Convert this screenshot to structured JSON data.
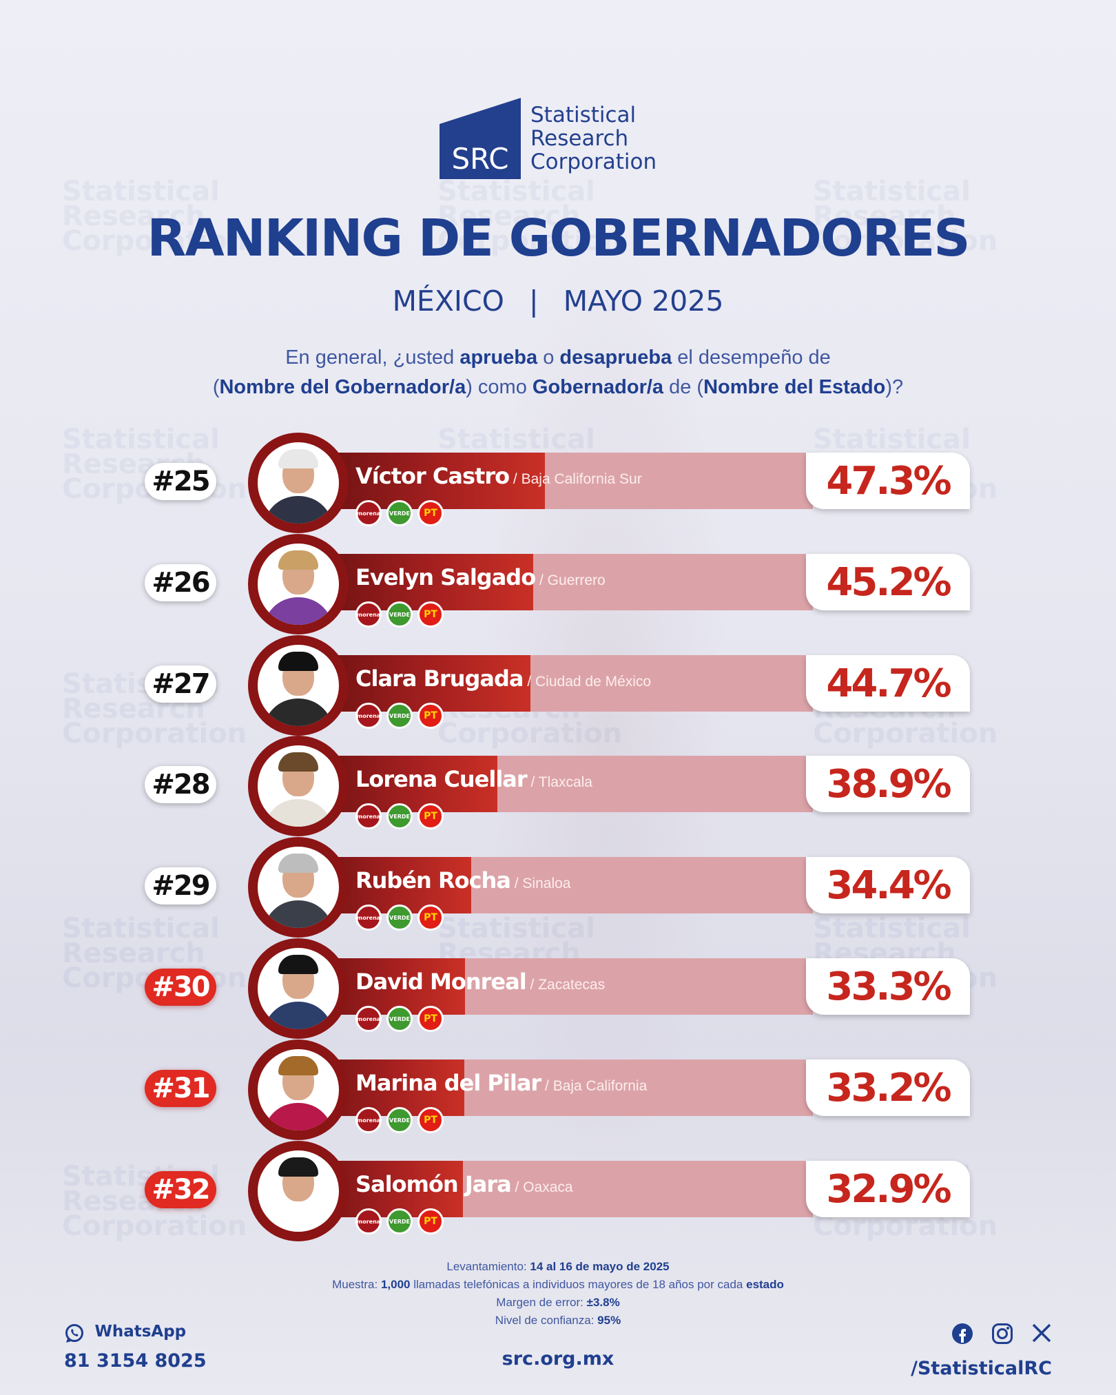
{
  "brand": {
    "logo_abbr": "SRC",
    "logo_lines": [
      "Statistical",
      "Research",
      "Corporation"
    ],
    "colors": {
      "primary_blue": "#1f3f8f",
      "bar_red": "#a31f1f",
      "bar_track": "#dba3a8",
      "badge_red": "#e02a22"
    }
  },
  "header": {
    "title": "RANKING DE GOBERNADORES",
    "country": "MÉXICO",
    "separator": "|",
    "date": "MAYO 2025"
  },
  "question": {
    "line1": [
      {
        "t": "En general, ¿usted ",
        "b": false
      },
      {
        "t": "aprueba",
        "b": true
      },
      {
        "t": " o ",
        "b": false
      },
      {
        "t": "desaprueba",
        "b": true
      },
      {
        "t": " el desempeño de",
        "b": false
      }
    ],
    "line2": [
      {
        "t": "(",
        "b": false
      },
      {
        "t": "Nombre del Gobernador/a",
        "b": true
      },
      {
        "t": ") como ",
        "b": false
      },
      {
        "t": "Gobernador/a",
        "b": true
      },
      {
        "t": " de (",
        "b": false
      },
      {
        "t": "Nombre del Estado",
        "b": true
      },
      {
        "t": ")?",
        "b": false
      }
    ]
  },
  "chart_data": {
    "type": "bar",
    "orientation": "horizontal",
    "title": "RANKING DE GOBERNADORES",
    "value_unit": "%",
    "xlim": [
      0,
      100
    ],
    "rows": [
      {
        "rank": "#25",
        "name": "Víctor Castro",
        "state": "/ Baja California Sur",
        "value": 47.3,
        "label": "47.3%",
        "highlight": false
      },
      {
        "rank": "#26",
        "name": "Evelyn Salgado",
        "state": "/ Guerrero",
        "value": 45.2,
        "label": "45.2%",
        "highlight": false
      },
      {
        "rank": "#27",
        "name": "Clara Brugada",
        "state": "/ Ciudad de México",
        "value": 44.7,
        "label": "44.7%",
        "highlight": false
      },
      {
        "rank": "#28",
        "name": "Lorena Cuellar",
        "state": "/ Tlaxcala",
        "value": 38.9,
        "label": "38.9%",
        "highlight": false
      },
      {
        "rank": "#29",
        "name": "Rubén Rocha",
        "state": "/ Sinaloa",
        "value": 34.4,
        "label": "34.4%",
        "highlight": false
      },
      {
        "rank": "#30",
        "name": "David Monreal",
        "state": "/ Zacatecas",
        "value": 33.3,
        "label": "33.3%",
        "highlight": true
      },
      {
        "rank": "#31",
        "name": "Marina del Pilar",
        "state": "/ Baja California",
        "value": 33.2,
        "label": "33.2%",
        "highlight": true
      },
      {
        "rank": "#32",
        "name": "Salomón Jara",
        "state": "/ Oaxaca",
        "value": 32.9,
        "label": "32.9%",
        "highlight": true
      }
    ],
    "party_logos": [
      "morena",
      "VERDE",
      "PT"
    ]
  },
  "methodology": [
    {
      "label": "Levantamiento: ",
      "value": "14 al 16 de mayo de 2025"
    },
    {
      "label": "Muestra: ",
      "value": "1,000",
      "rest": " llamadas telefónicas a individuos mayores de 18 años por cada ",
      "tail": "estado"
    },
    {
      "label": "Margen de error: ",
      "value": "±3.8%"
    },
    {
      "label": "Nivel de confianza: ",
      "value": "95%"
    }
  ],
  "footer": {
    "whatsapp_label": "WhatsApp",
    "whatsapp_number": "81 3154 8025",
    "website": "src.org.mx",
    "social_handle": "/StatisticalRC",
    "social_icons": [
      "facebook-icon",
      "instagram-icon",
      "x-icon"
    ]
  }
}
